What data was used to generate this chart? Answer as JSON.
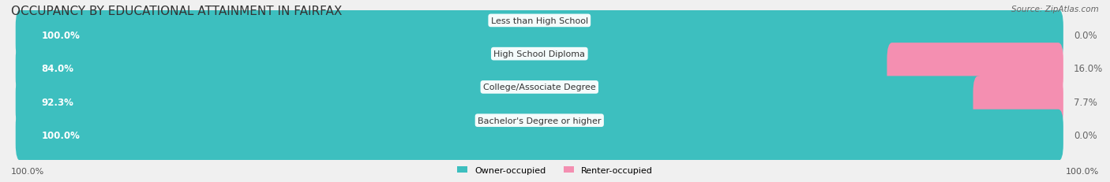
{
  "title": "OCCUPANCY BY EDUCATIONAL ATTAINMENT IN FAIRFAX",
  "source": "Source: ZipAtlas.com",
  "categories": [
    "Less than High School",
    "High School Diploma",
    "College/Associate Degree",
    "Bachelor's Degree or higher"
  ],
  "owner_values": [
    100.0,
    84.0,
    92.3,
    100.0
  ],
  "renter_values": [
    0.0,
    16.0,
    7.7,
    0.0
  ],
  "owner_color": "#3dbfbf",
  "renter_color": "#f48fb1",
  "bg_color": "#f0f0f0",
  "bar_bg_color": "#e8e8e8",
  "title_fontsize": 11,
  "label_fontsize": 8.5,
  "bar_height": 0.55,
  "xlim": [
    0,
    100
  ]
}
